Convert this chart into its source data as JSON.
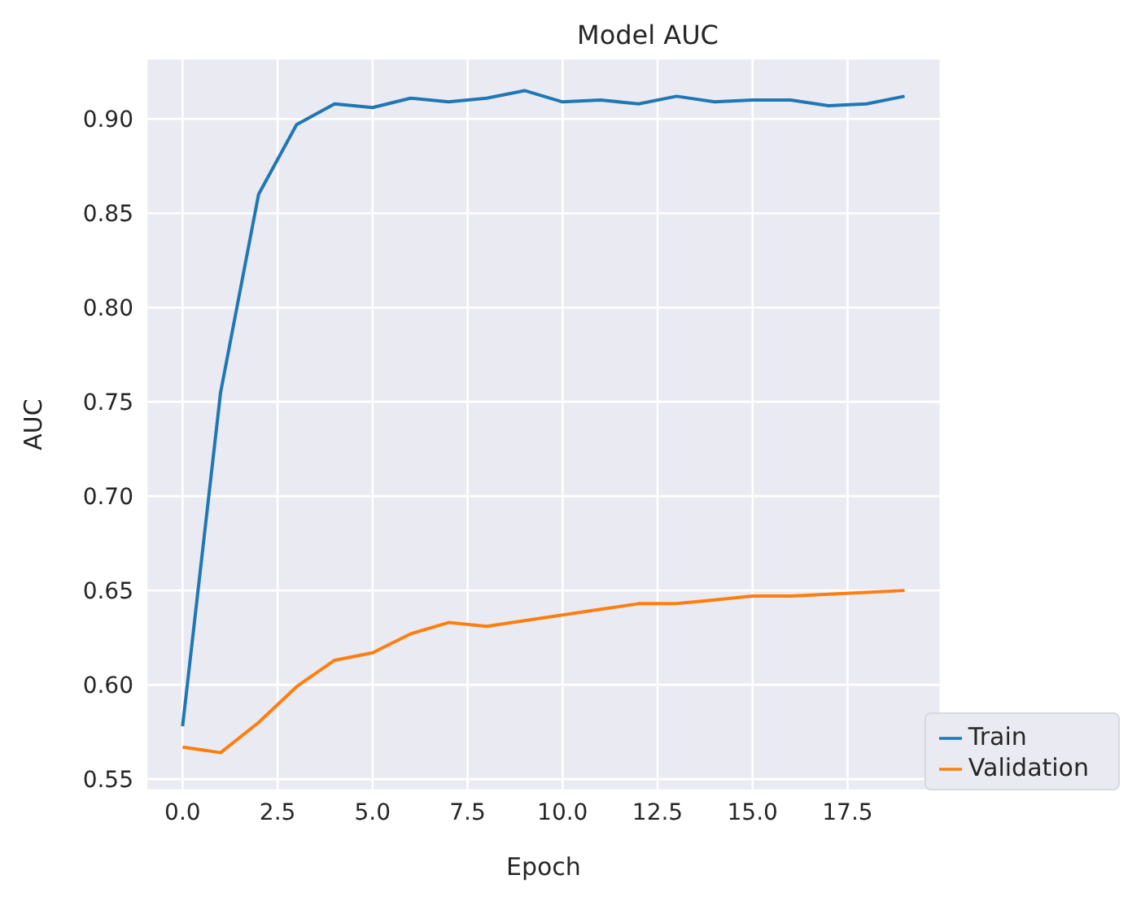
{
  "chart_data": {
    "type": "line",
    "title": "Model AUC",
    "xlabel": "Epoch",
    "ylabel": "AUC",
    "x": [
      0,
      1,
      2,
      3,
      4,
      5,
      6,
      7,
      8,
      9,
      10,
      11,
      12,
      13,
      14,
      15,
      16,
      17,
      18,
      19
    ],
    "series": [
      {
        "name": "Train",
        "color": "#1f77b4",
        "values": [
          0.578,
          0.755,
          0.86,
          0.897,
          0.908,
          0.906,
          0.911,
          0.909,
          0.911,
          0.915,
          0.909,
          0.91,
          0.908,
          0.912,
          0.909,
          0.91,
          0.91,
          0.907,
          0.908,
          0.912
        ]
      },
      {
        "name": "Validation",
        "color": "#ff7f0e",
        "values": [
          0.567,
          0.564,
          0.58,
          0.599,
          0.613,
          0.617,
          0.627,
          0.633,
          0.631,
          0.634,
          0.637,
          0.64,
          0.643,
          0.643,
          0.645,
          0.647,
          0.647,
          0.648,
          0.649,
          0.65
        ]
      }
    ],
    "xlim": [
      -0.95,
      19.95
    ],
    "xticks": [
      {
        "value": 0,
        "label": "0.0"
      },
      {
        "value": 2.5,
        "label": "2.5"
      },
      {
        "value": 5,
        "label": "5.0"
      },
      {
        "value": 7.5,
        "label": "7.5"
      },
      {
        "value": 10,
        "label": "10.0"
      },
      {
        "value": 12.5,
        "label": "12.5"
      },
      {
        "value": 15,
        "label": "15.0"
      },
      {
        "value": 17.5,
        "label": "17.5"
      }
    ],
    "ylim": [
      0.544,
      0.932
    ],
    "yticks": [
      {
        "value": 0.55,
        "label": "0.55"
      },
      {
        "value": 0.6,
        "label": "0.60"
      },
      {
        "value": 0.65,
        "label": "0.65"
      },
      {
        "value": 0.7,
        "label": "0.70"
      },
      {
        "value": 0.75,
        "label": "0.75"
      },
      {
        "value": 0.8,
        "label": "0.80"
      },
      {
        "value": 0.85,
        "label": "0.85"
      },
      {
        "value": 0.9,
        "label": "0.90"
      }
    ],
    "grid": true,
    "legend": "bottom right",
    "marker": "none",
    "line_style": "solid"
  }
}
